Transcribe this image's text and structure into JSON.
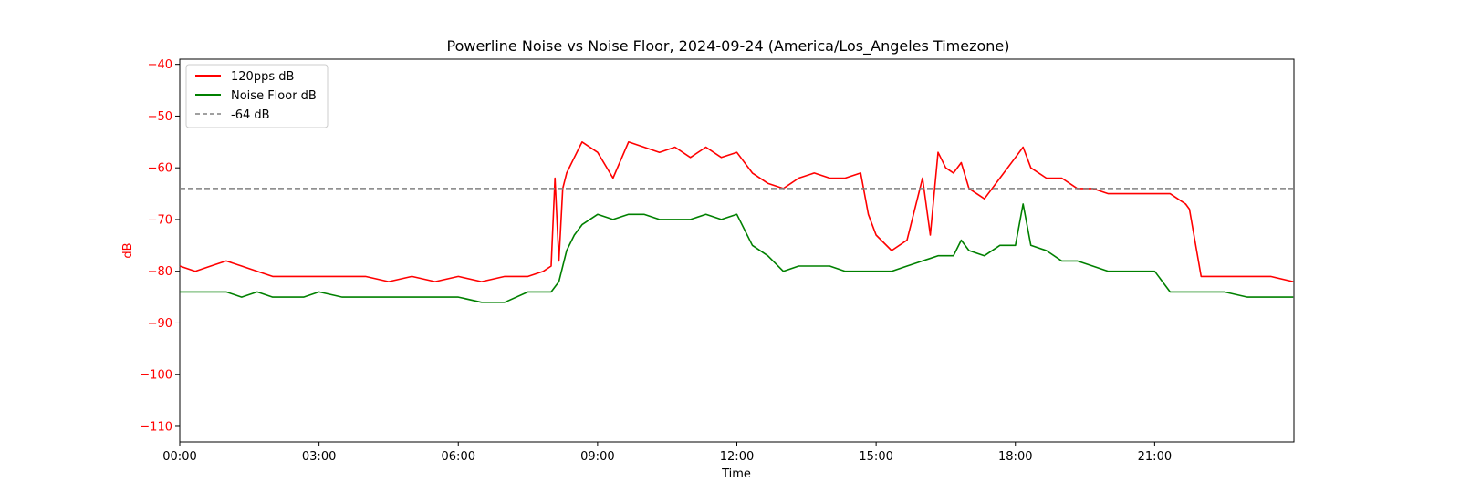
{
  "chart_data": {
    "type": "line",
    "title": "Powerline Noise vs Noise Floor, 2024-09-24 (America/Los_Angeles Timezone)",
    "xlabel": "Time",
    "ylabel": "dB",
    "xlim": [
      "00:00",
      "24:00"
    ],
    "ylim": [
      -113,
      -39
    ],
    "x_ticks": [
      "00:00",
      "03:00",
      "06:00",
      "09:00",
      "12:00",
      "15:00",
      "18:00",
      "21:00"
    ],
    "y_ticks": [
      -40,
      -50,
      -60,
      -70,
      -80,
      -90,
      -100,
      -110
    ],
    "grid": false,
    "legend_position": "top-left",
    "colors": {
      "ylabel_color": "#ff0000",
      "series_red": "#ff0000",
      "series_green": "#008000",
      "reference": "#808080"
    },
    "reference_line": {
      "name": "-64 dB",
      "y": -64,
      "style": "dashed"
    },
    "series": [
      {
        "name": "120pps dB",
        "color": "#ff0000",
        "x": [
          "00:00",
          "00:20",
          "00:40",
          "01:00",
          "01:20",
          "01:40",
          "02:00",
          "02:20",
          "02:40",
          "03:00",
          "03:30",
          "04:00",
          "04:30",
          "05:00",
          "05:30",
          "06:00",
          "06:30",
          "07:00",
          "07:30",
          "07:50",
          "08:00",
          "08:05",
          "08:10",
          "08:15",
          "08:20",
          "08:30",
          "08:40",
          "09:00",
          "09:20",
          "09:40",
          "10:00",
          "10:20",
          "10:40",
          "11:00",
          "11:20",
          "11:40",
          "12:00",
          "12:20",
          "12:40",
          "13:00",
          "13:20",
          "13:40",
          "14:00",
          "14:20",
          "14:40",
          "14:50",
          "15:00",
          "15:20",
          "15:40",
          "16:00",
          "16:10",
          "16:20",
          "16:30",
          "16:40",
          "16:50",
          "17:00",
          "17:20",
          "17:40",
          "18:00",
          "18:10",
          "18:20",
          "18:40",
          "19:00",
          "19:20",
          "19:40",
          "20:00",
          "20:20",
          "20:40",
          "21:00",
          "21:20",
          "21:40",
          "21:45",
          "22:00",
          "22:30",
          "23:00",
          "23:30",
          "23:59"
        ],
        "y": [
          -79,
          -80,
          -79,
          -78,
          -79,
          -80,
          -81,
          -81,
          -81,
          -81,
          -81,
          -81,
          -82,
          -81,
          -82,
          -81,
          -82,
          -81,
          -81,
          -80,
          -79,
          -62,
          -78,
          -64,
          -61,
          -58,
          -55,
          -57,
          -62,
          -55,
          -56,
          -57,
          -56,
          -58,
          -56,
          -58,
          -57,
          -61,
          -63,
          -64,
          -62,
          -61,
          -62,
          -62,
          -61,
          -69,
          -73,
          -76,
          -74,
          -62,
          -73,
          -57,
          -60,
          -61,
          -59,
          -64,
          -66,
          -62,
          -58,
          -56,
          -60,
          -62,
          -62,
          -64,
          -64,
          -65,
          -65,
          -65,
          -65,
          -65,
          -67,
          -68,
          -81,
          -81,
          -81,
          -81,
          -82
        ]
      },
      {
        "name": "Noise Floor dB",
        "color": "#008000",
        "x": [
          "00:00",
          "00:20",
          "00:40",
          "01:00",
          "01:20",
          "01:40",
          "02:00",
          "02:20",
          "02:40",
          "03:00",
          "03:30",
          "04:00",
          "04:30",
          "05:00",
          "05:30",
          "06:00",
          "06:30",
          "07:00",
          "07:30",
          "07:50",
          "08:00",
          "08:10",
          "08:20",
          "08:30",
          "08:40",
          "09:00",
          "09:20",
          "09:40",
          "10:00",
          "10:20",
          "10:40",
          "11:00",
          "11:20",
          "11:40",
          "12:00",
          "12:20",
          "12:40",
          "13:00",
          "13:20",
          "13:40",
          "14:00",
          "14:20",
          "14:40",
          "15:00",
          "15:20",
          "15:40",
          "16:00",
          "16:20",
          "16:40",
          "16:50",
          "17:00",
          "17:20",
          "17:40",
          "18:00",
          "18:10",
          "18:20",
          "18:40",
          "19:00",
          "19:20",
          "19:40",
          "20:00",
          "20:20",
          "20:40",
          "21:00",
          "21:20",
          "21:40",
          "22:00",
          "22:30",
          "23:00",
          "23:30",
          "23:59"
        ],
        "y": [
          -84,
          -84,
          -84,
          -84,
          -85,
          -84,
          -85,
          -85,
          -85,
          -84,
          -85,
          -85,
          -85,
          -85,
          -85,
          -85,
          -86,
          -86,
          -84,
          -84,
          -84,
          -82,
          -76,
          -73,
          -71,
          -69,
          -70,
          -69,
          -69,
          -70,
          -70,
          -70,
          -69,
          -70,
          -69,
          -75,
          -77,
          -80,
          -79,
          -79,
          -79,
          -80,
          -80,
          -80,
          -80,
          -79,
          -78,
          -77,
          -77,
          -74,
          -76,
          -77,
          -75,
          -75,
          -67,
          -75,
          -76,
          -78,
          -78,
          -79,
          -80,
          -80,
          -80,
          -80,
          -84,
          -84,
          -84,
          -84,
          -85,
          -85,
          -85
        ]
      }
    ]
  }
}
